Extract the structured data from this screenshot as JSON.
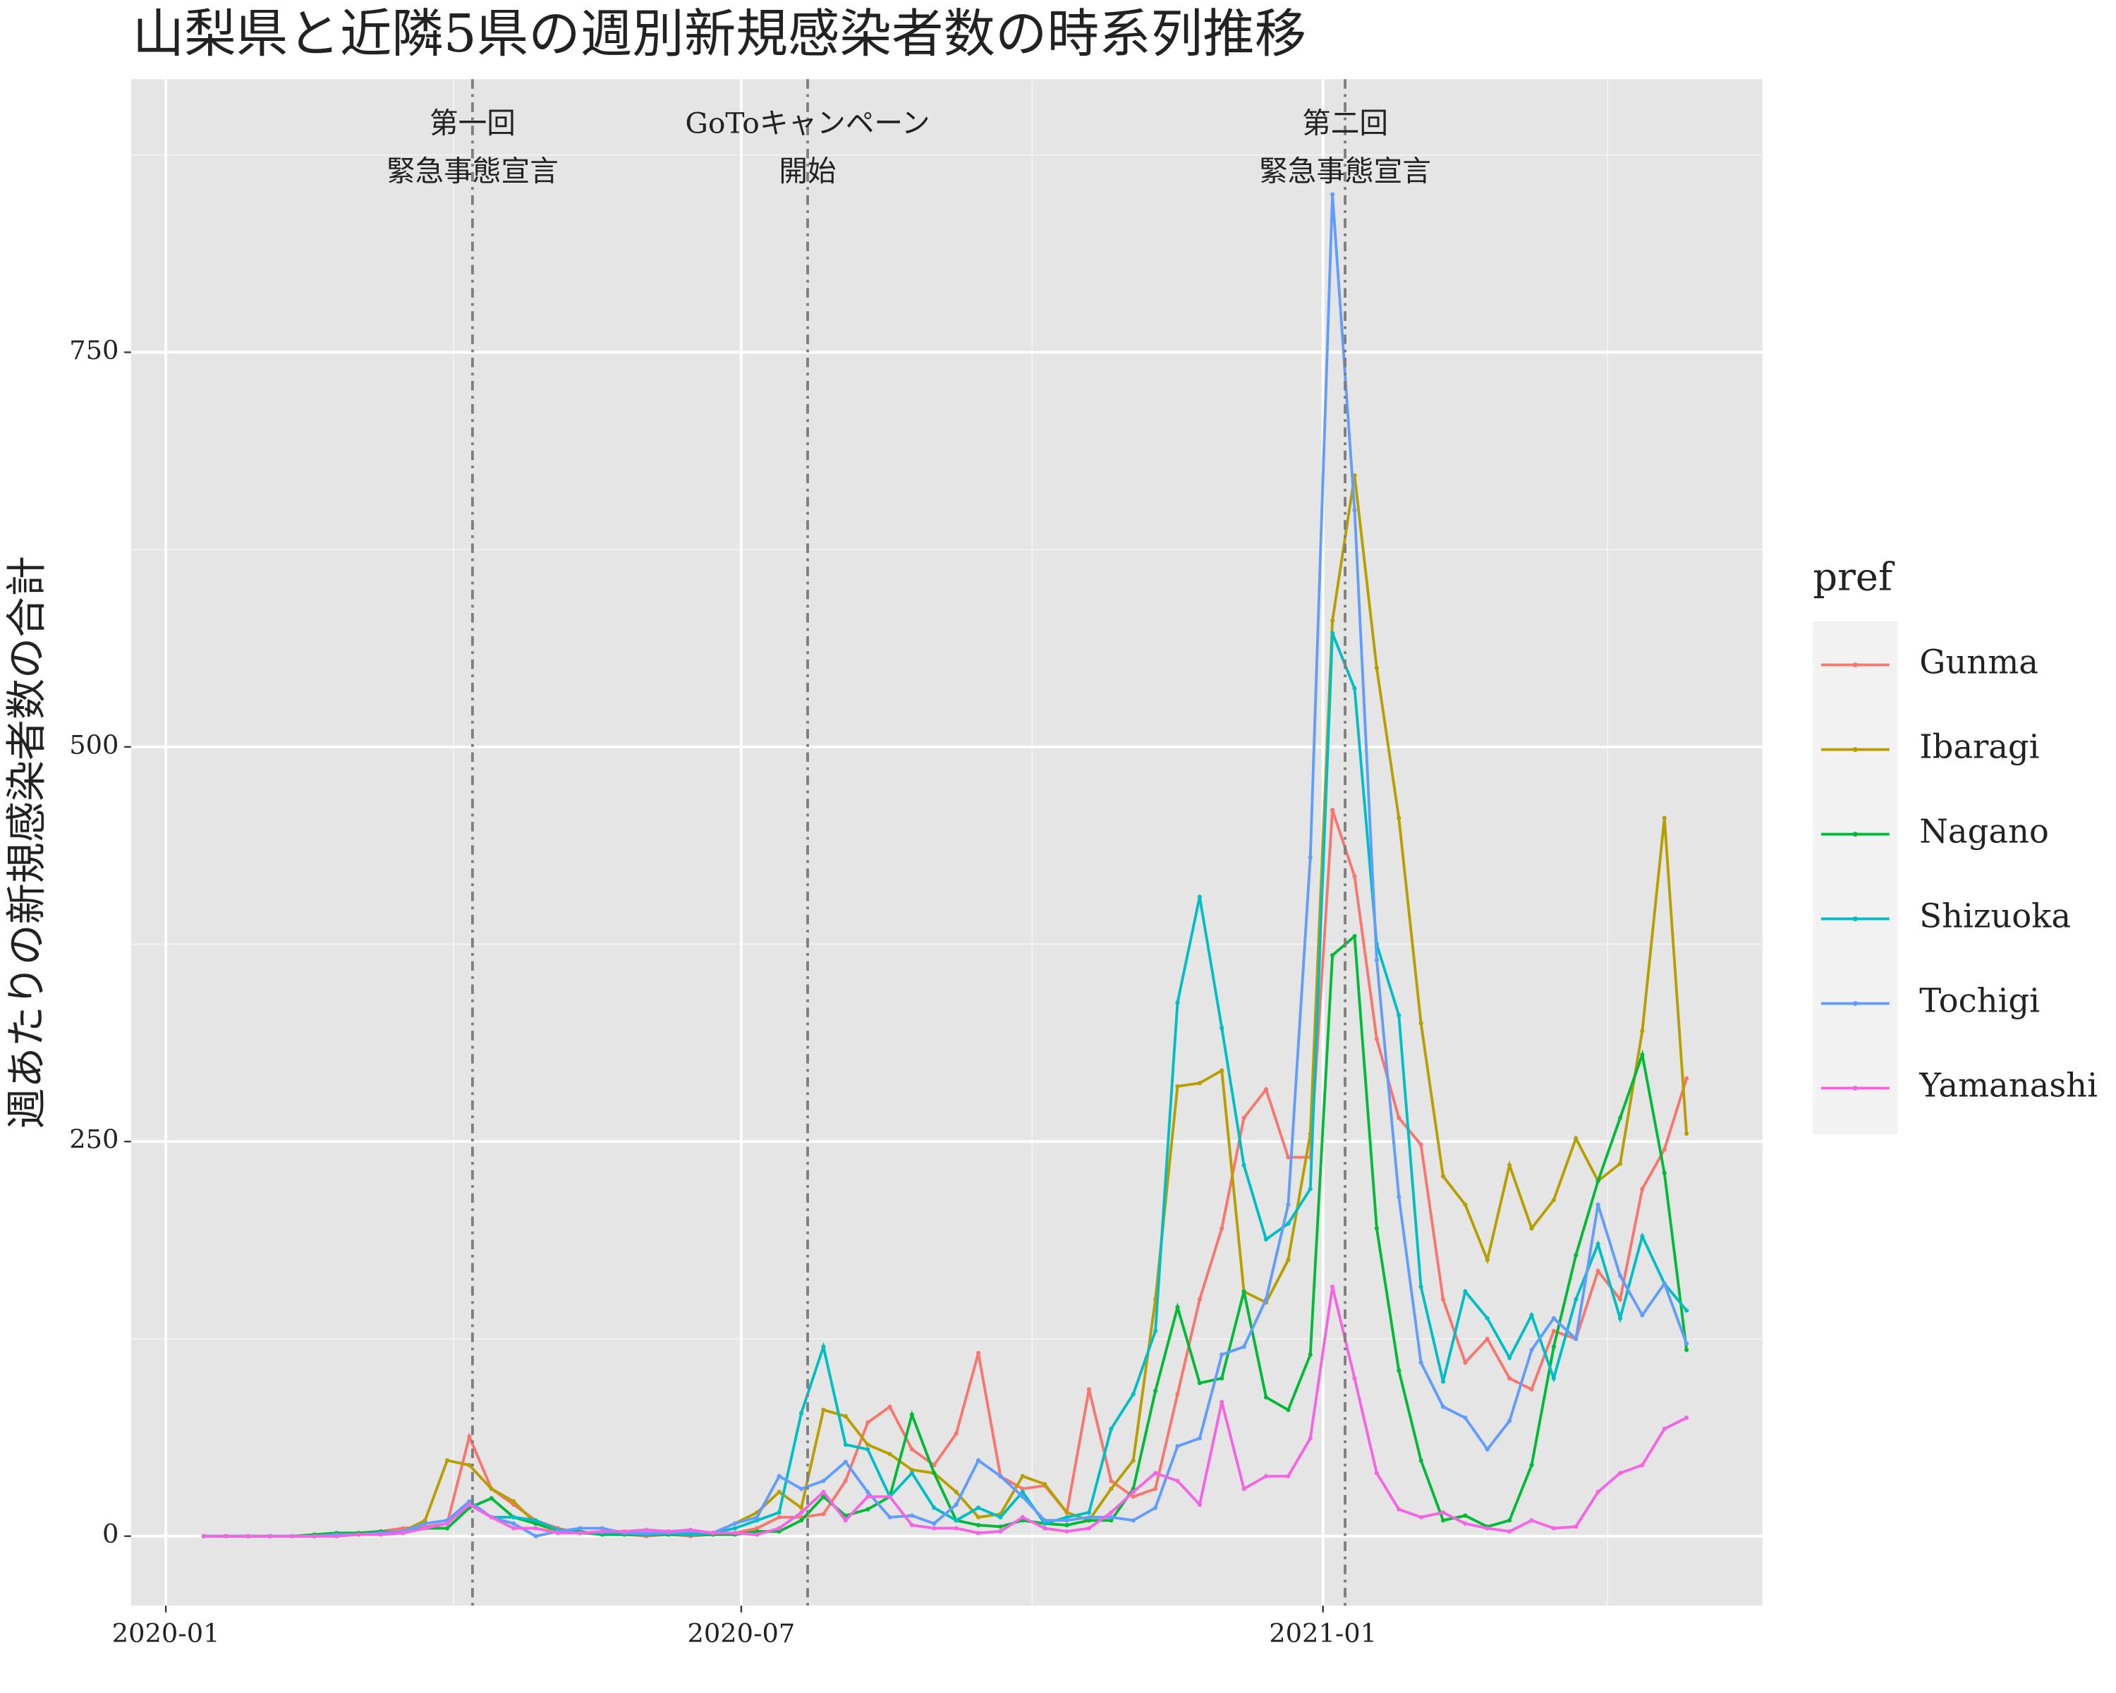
{
  "chart_data": {
    "type": "line",
    "title": "山梨県と近隣5県の週別新規感染者数の時系列推移",
    "ylabel": "週あたりの新規感染者数の合計",
    "legend_title": "pref",
    "legend": "right",
    "grid": true,
    "x": [
      "2020-01-13",
      "2020-01-20",
      "2020-01-27",
      "2020-02-03",
      "2020-02-10",
      "2020-02-17",
      "2020-02-24",
      "2020-03-02",
      "2020-03-09",
      "2020-03-16",
      "2020-03-23",
      "2020-03-30",
      "2020-04-06",
      "2020-04-13",
      "2020-04-20",
      "2020-04-27",
      "2020-05-04",
      "2020-05-11",
      "2020-05-18",
      "2020-05-25",
      "2020-06-01",
      "2020-06-08",
      "2020-06-15",
      "2020-06-22",
      "2020-06-29",
      "2020-07-06",
      "2020-07-13",
      "2020-07-20",
      "2020-07-27",
      "2020-08-03",
      "2020-08-10",
      "2020-08-17",
      "2020-08-24",
      "2020-08-31",
      "2020-09-07",
      "2020-09-14",
      "2020-09-21",
      "2020-09-28",
      "2020-10-05",
      "2020-10-12",
      "2020-10-19",
      "2020-10-26",
      "2020-11-02",
      "2020-11-09",
      "2020-11-16",
      "2020-11-23",
      "2020-11-30",
      "2020-12-07",
      "2020-12-14",
      "2020-12-21",
      "2020-12-28",
      "2021-01-04",
      "2021-01-11",
      "2021-01-18",
      "2021-01-25",
      "2021-02-01",
      "2021-02-08",
      "2021-02-15",
      "2021-02-22",
      "2021-03-01",
      "2021-03-08",
      "2021-03-15",
      "2021-03-22",
      "2021-03-29",
      "2021-04-05",
      "2021-04-12",
      "2021-04-19",
      "2021-04-26"
    ],
    "series": [
      {
        "name": "Gunma",
        "color": "#F8766D",
        "values": [
          0,
          0,
          0,
          0,
          0,
          0,
          1,
          2,
          3,
          5,
          6,
          8,
          63,
          30,
          20,
          10,
          5,
          2,
          1,
          1,
          0,
          1,
          0,
          1,
          2,
          5,
          12,
          12,
          14,
          35,
          72,
          82,
          55,
          45,
          65,
          116,
          38,
          30,
          32,
          15,
          93,
          35,
          25,
          30,
          90,
          150,
          195,
          265,
          283,
          240,
          240,
          460,
          418,
          315,
          265,
          248,
          150,
          110,
          125,
          100,
          93,
          130,
          125,
          168,
          150,
          220,
          245,
          290
        ]
      },
      {
        "name": "Ibaragi",
        "color": "#B79F00",
        "values": [
          0,
          0,
          0,
          0,
          0,
          0,
          1,
          1,
          2,
          3,
          10,
          48,
          45,
          30,
          22,
          8,
          3,
          2,
          2,
          2,
          1,
          2,
          2,
          2,
          8,
          15,
          28,
          18,
          80,
          76,
          58,
          52,
          42,
          40,
          28,
          12,
          14,
          38,
          33,
          15,
          10,
          30,
          48,
          150,
          285,
          287,
          295,
          155,
          148,
          175,
          255,
          580,
          672,
          550,
          455,
          325,
          228,
          210,
          175,
          235,
          195,
          213,
          252,
          225,
          236,
          320,
          455,
          255
        ]
      },
      {
        "name": "Nagano",
        "color": "#00BA38",
        "values": [
          0,
          0,
          0,
          0,
          0,
          1,
          2,
          2,
          3,
          2,
          5,
          5,
          18,
          24,
          12,
          8,
          4,
          3,
          1,
          1,
          1,
          1,
          1,
          1,
          1,
          3,
          3,
          10,
          25,
          13,
          17,
          25,
          77,
          40,
          10,
          7,
          6,
          10,
          8,
          7,
          10,
          10,
          30,
          92,
          145,
          97,
          100,
          155,
          88,
          80,
          115,
          368,
          380,
          195,
          105,
          48,
          10,
          13,
          6,
          10,
          45,
          120,
          178,
          225,
          265,
          305,
          230,
          118
        ]
      },
      {
        "name": "Shizuoka",
        "color": "#00BFC4",
        "values": [
          0,
          0,
          0,
          0,
          0,
          0,
          0,
          1,
          2,
          3,
          5,
          8,
          20,
          12,
          12,
          10,
          4,
          2,
          2,
          2,
          1,
          2,
          1,
          2,
          5,
          10,
          15,
          78,
          120,
          58,
          55,
          25,
          40,
          18,
          10,
          18,
          12,
          28,
          8,
          12,
          15,
          68,
          90,
          130,
          338,
          405,
          322,
          235,
          188,
          198,
          220,
          572,
          537,
          375,
          330,
          158,
          98,
          155,
          138,
          113,
          140,
          100,
          150,
          185,
          138,
          190,
          160,
          143
        ]
      },
      {
        "name": "Tochigi",
        "color": "#619CFF",
        "values": [
          0,
          0,
          0,
          0,
          0,
          0,
          1,
          1,
          2,
          3,
          8,
          10,
          22,
          12,
          8,
          0,
          3,
          5,
          5,
          2,
          2,
          2,
          3,
          2,
          8,
          12,
          38,
          30,
          35,
          47,
          28,
          12,
          13,
          8,
          20,
          48,
          38,
          25,
          10,
          10,
          12,
          12,
          10,
          18,
          57,
          62,
          115,
          120,
          150,
          210,
          430,
          850,
          650,
          365,
          215,
          110,
          82,
          75,
          55,
          73,
          118,
          138,
          125,
          210,
          165,
          140,
          160,
          122
        ]
      },
      {
        "name": "Yamanashi",
        "color": "#F564E3",
        "values": [
          0,
          0,
          0,
          0,
          0,
          0,
          0,
          1,
          1,
          2,
          5,
          8,
          20,
          12,
          5,
          5,
          2,
          2,
          3,
          3,
          4,
          3,
          4,
          2,
          2,
          1,
          5,
          15,
          28,
          10,
          25,
          25,
          7,
          5,
          5,
          2,
          3,
          12,
          5,
          3,
          5,
          15,
          28,
          40,
          35,
          20,
          85,
          30,
          38,
          38,
          62,
          158,
          100,
          40,
          17,
          12,
          15,
          8,
          5,
          3,
          10,
          5,
          6,
          28,
          40,
          45,
          68,
          75
        ]
      }
    ],
    "xlim": [
      "2019-12-21",
      "2021-05-20"
    ],
    "xticks": [
      {
        "value": "2020-01-01",
        "label": "2020-01"
      },
      {
        "value": "2020-07-01",
        "label": "2020-07"
      },
      {
        "value": "2021-01-01",
        "label": "2021-01"
      }
    ],
    "xminor": [
      "2020-04-01",
      "2020-10-01",
      "2021-04-01"
    ],
    "ylim": [
      -44,
      923
    ],
    "yticks": [
      0,
      250,
      500,
      750
    ],
    "yminor": [
      125,
      375,
      625,
      875
    ],
    "annotations": [
      {
        "x": "2020-04-07",
        "lines": [
          "第一回",
          "緊急事態宣言"
        ]
      },
      {
        "x": "2020-07-22",
        "lines": [
          "GoToキャンペーン",
          "開始"
        ]
      },
      {
        "x": "2021-01-08",
        "lines": [
          "第二回",
          "緊急事態宣言"
        ]
      }
    ]
  }
}
